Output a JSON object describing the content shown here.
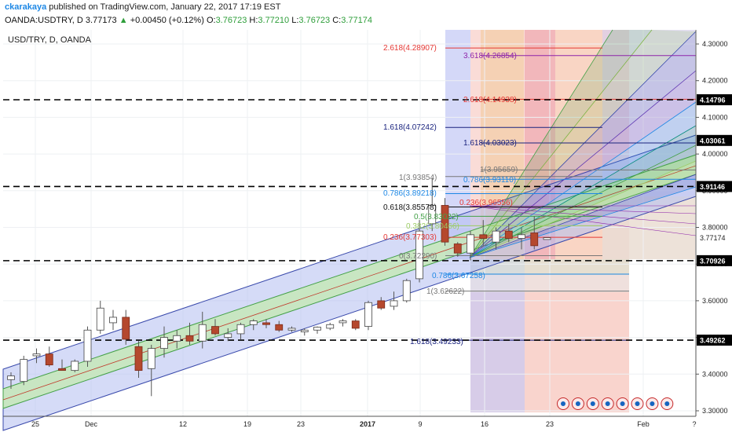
{
  "header": {
    "author": "ckarakaya",
    "published_text": " published on TradingView.com, January 22, 2017 17:19 EST",
    "symbol_line": "OANDA:USDTRY, D",
    "last": "3.77173",
    "change": "+0.00450 (+0.12%)",
    "open_label": "O:",
    "open": "3.76723",
    "high_label": "H:",
    "high": "3.77210",
    "low_label": "L:",
    "low": "3.76723",
    "close_label": "C:",
    "close": "3.77174"
  },
  "chart_data": {
    "type": "candlestick",
    "title": "USD/TRY, D, OANDA",
    "ylim": [
      3.3,
      4.35
    ],
    "y_ticks": [
      "3.30000",
      "3.40000",
      "3.50000",
      "3.60000",
      "3.70000",
      "3.80000",
      "3.90000",
      "4.00000",
      "4.10000",
      "4.20000",
      "4.30000"
    ],
    "x_labels": [
      "25",
      "Dec",
      "12",
      "19",
      "23",
      "2017",
      "9",
      "16",
      "23",
      "Feb",
      "?"
    ],
    "candles": [
      {
        "o": 3.385,
        "h": 3.405,
        "l": 3.36,
        "c": 3.395
      },
      {
        "o": 3.38,
        "h": 3.45,
        "l": 3.37,
        "c": 3.44
      },
      {
        "o": 3.45,
        "h": 3.47,
        "l": 3.43,
        "c": 3.455
      },
      {
        "o": 3.455,
        "h": 3.475,
        "l": 3.42,
        "c": 3.425
      },
      {
        "o": 3.415,
        "h": 3.44,
        "l": 3.41,
        "c": 3.41
      },
      {
        "o": 3.41,
        "h": 3.44,
        "l": 3.405,
        "c": 3.435
      },
      {
        "o": 3.435,
        "h": 3.53,
        "l": 3.42,
        "c": 3.52
      },
      {
        "o": 3.52,
        "h": 3.6,
        "l": 3.51,
        "c": 3.58
      },
      {
        "o": 3.54,
        "h": 3.575,
        "l": 3.52,
        "c": 3.555
      },
      {
        "o": 3.555,
        "h": 3.575,
        "l": 3.48,
        "c": 3.495
      },
      {
        "o": 3.475,
        "h": 3.49,
        "l": 3.39,
        "c": 3.41
      },
      {
        "o": 3.415,
        "h": 3.48,
        "l": 3.34,
        "c": 3.47
      },
      {
        "o": 3.47,
        "h": 3.53,
        "l": 3.445,
        "c": 3.5
      },
      {
        "o": 3.49,
        "h": 3.52,
        "l": 3.47,
        "c": 3.505
      },
      {
        "o": 3.505,
        "h": 3.54,
        "l": 3.48,
        "c": 3.49
      },
      {
        "o": 3.49,
        "h": 3.57,
        "l": 3.47,
        "c": 3.535
      },
      {
        "o": 3.53,
        "h": 3.55,
        "l": 3.505,
        "c": 3.51
      },
      {
        "o": 3.5,
        "h": 3.525,
        "l": 3.49,
        "c": 3.51
      },
      {
        "o": 3.51,
        "h": 3.54,
        "l": 3.495,
        "c": 3.535
      },
      {
        "o": 3.535,
        "h": 3.55,
        "l": 3.52,
        "c": 3.545
      },
      {
        "o": 3.54,
        "h": 3.55,
        "l": 3.525,
        "c": 3.535
      },
      {
        "o": 3.535,
        "h": 3.545,
        "l": 3.515,
        "c": 3.52
      },
      {
        "o": 3.52,
        "h": 3.53,
        "l": 3.515,
        "c": 3.525
      },
      {
        "o": 3.515,
        "h": 3.525,
        "l": 3.505,
        "c": 3.52
      },
      {
        "o": 3.52,
        "h": 3.53,
        "l": 3.51,
        "c": 3.528
      },
      {
        "o": 3.525,
        "h": 3.54,
        "l": 3.52,
        "c": 3.535
      },
      {
        "o": 3.54,
        "h": 3.55,
        "l": 3.53,
        "c": 3.545
      },
      {
        "o": 3.545,
        "h": 3.55,
        "l": 3.52,
        "c": 3.525
      },
      {
        "o": 3.53,
        "h": 3.6,
        "l": 3.52,
        "c": 3.595
      },
      {
        "o": 3.6,
        "h": 3.61,
        "l": 3.575,
        "c": 3.58
      },
      {
        "o": 3.585,
        "h": 3.625,
        "l": 3.575,
        "c": 3.6
      },
      {
        "o": 3.6,
        "h": 3.66,
        "l": 3.595,
        "c": 3.655
      },
      {
        "o": 3.66,
        "h": 3.82,
        "l": 3.65,
        "c": 3.79
      },
      {
        "o": 3.81,
        "h": 3.935,
        "l": 3.79,
        "c": 3.86
      },
      {
        "o": 3.86,
        "h": 3.88,
        "l": 3.75,
        "c": 3.76
      },
      {
        "o": 3.755,
        "h": 3.76,
        "l": 3.72,
        "c": 3.73
      },
      {
        "o": 3.73,
        "h": 3.79,
        "l": 3.71,
        "c": 3.78
      },
      {
        "o": 3.78,
        "h": 3.82,
        "l": 3.75,
        "c": 3.77
      },
      {
        "o": 3.76,
        "h": 3.8,
        "l": 3.74,
        "c": 3.79
      },
      {
        "o": 3.79,
        "h": 3.81,
        "l": 3.76,
        "c": 3.77
      },
      {
        "o": 3.77,
        "h": 3.8,
        "l": 3.74,
        "c": 3.78
      },
      {
        "o": 3.785,
        "h": 3.83,
        "l": 3.74,
        "c": 3.75
      },
      {
        "o": 3.767,
        "h": 3.772,
        "l": 3.767,
        "c": 3.772
      }
    ],
    "hlines": [
      {
        "value": 4.14796,
        "label": "4.14796"
      },
      {
        "value": 3.91146,
        "label": "3.91146"
      },
      {
        "value": 3.70926,
        "label": "3.70926"
      },
      {
        "value": 3.49262,
        "label": "3.49262"
      }
    ],
    "extra_price_labels": [
      {
        "value": 4.03061,
        "label": "4.03061"
      },
      {
        "value": 3.77174,
        "label": "3.77174"
      }
    ],
    "fib_labels": [
      {
        "text": "2.618(4.28907)",
        "color": "#e53935"
      },
      {
        "text": "3.618(4.26854)",
        "color": "#8e24aa"
      },
      {
        "text": "2.618(4.14938)",
        "color": "#e53935"
      },
      {
        "text": "1.618(4.07242)",
        "color": "#1a237e"
      },
      {
        "text": "1.618(4.03023)",
        "color": "#1a237e"
      },
      {
        "text": "1(3.95659)",
        "color": "#777777"
      },
      {
        "text": "1(3.93854)",
        "color": "#777777"
      },
      {
        "text": "0.786(3.93110)",
        "color": "#1e88e5"
      },
      {
        "text": "0.786(3.89218)",
        "color": "#1e88e5"
      },
      {
        "text": "0.618(3.85578)",
        "color": "#111111"
      },
      {
        "text": "0.5(3.83022)",
        "color": "#43a047"
      },
      {
        "text": "0.382(3.80466)",
        "color": "#9ccc65"
      },
      {
        "text": "0.236(3.77303)",
        "color": "#e53935"
      },
      {
        "text": "0.236(3.96556)",
        "color": "#e53935"
      },
      {
        "text": "0(3.72290)",
        "color": "#777777"
      },
      {
        "text": "0.786(3.67258)",
        "color": "#1e88e5"
      },
      {
        "text": "1(3.62622)",
        "color": "#777777"
      },
      {
        "text": "1.618(3.49233)",
        "color": "#1a237e"
      }
    ]
  }
}
